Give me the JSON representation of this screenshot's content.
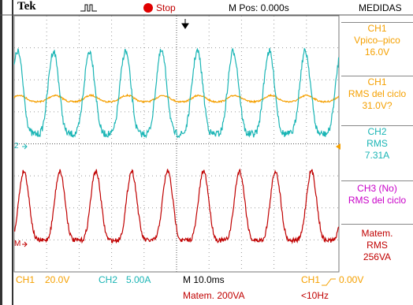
{
  "toolbar": {
    "brand": "Tek",
    "status": "Stop",
    "position": "M Pos: 0.000s",
    "panel_title": "MEDIDAS"
  },
  "measurements": [
    {
      "source": "CH1",
      "label": "Vpico–pico",
      "value": "16.0V"
    },
    {
      "source": "CH1",
      "label": "RMS del ciclo",
      "value": "31.0V?"
    },
    {
      "source": "CH2",
      "label": "RMS",
      "value": "7.31A"
    },
    {
      "source": "CH3 (No)",
      "label": "RMS del ciclo"
    },
    {
      "source": "Matem.",
      "label": "RMS",
      "value": "256VA"
    }
  ],
  "markers": {
    "ch2": "2",
    "math": "M"
  },
  "status_bar": {
    "ch1_source": "CH1",
    "ch1_scale": "20.0V",
    "ch2_source": "CH2",
    "ch2_scale": "5.00A",
    "timebase": "M 10.0ms",
    "trigger_source": "CH1",
    "trigger_level": "0.00V",
    "math_scale": "Matem. 200VA",
    "frequency": "<10Hz"
  }
}
